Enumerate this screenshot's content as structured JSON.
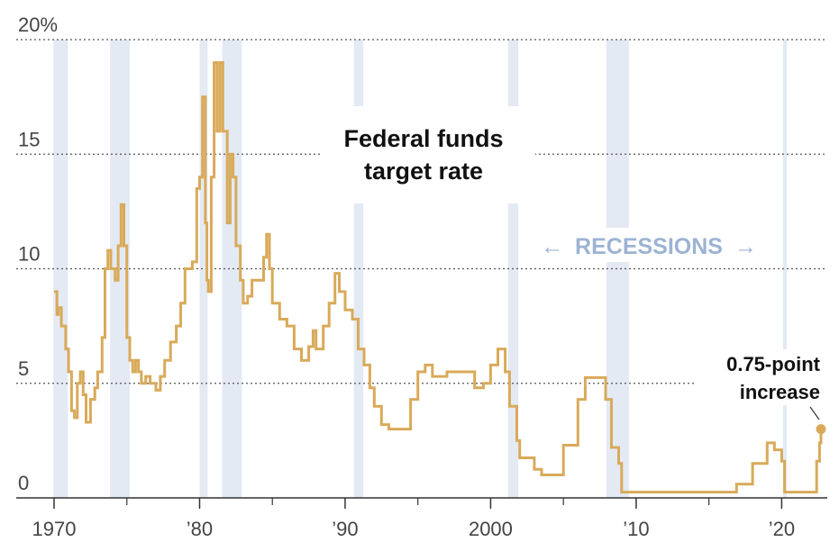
{
  "chart_data": {
    "type": "line",
    "title_lines": [
      "Federal funds",
      "target rate"
    ],
    "recessions_label": "RECESSIONS",
    "recessions_arrows": [
      "←",
      "→"
    ],
    "annotation_lines": [
      "0.75-point",
      "increase"
    ],
    "ylim": [
      0,
      20
    ],
    "xlim": [
      1970,
      2022.7
    ],
    "y_ticks": [
      {
        "value": 0,
        "label": "0"
      },
      {
        "value": 5,
        "label": "5"
      },
      {
        "value": 10,
        "label": "10"
      },
      {
        "value": 15,
        "label": "15"
      },
      {
        "value": 20,
        "label": "20%"
      }
    ],
    "x_ticks": [
      {
        "value": 1970,
        "label": "1970"
      },
      {
        "value": 1980,
        "label": "’80"
      },
      {
        "value": 1990,
        "label": "’90"
      },
      {
        "value": 2000,
        "label": "2000"
      },
      {
        "value": 2010,
        "label": "’10"
      },
      {
        "value": 2020,
        "label": "’20"
      }
    ],
    "x_minor_ticks": [
      1975,
      1985,
      1995,
      2005,
      2015
    ],
    "recessions": [
      [
        1969.95,
        1970.95
      ],
      [
        1973.85,
        1975.2
      ],
      [
        1980.0,
        1980.55
      ],
      [
        1981.55,
        1982.9
      ],
      [
        1990.6,
        1991.25
      ],
      [
        2001.2,
        2001.9
      ],
      [
        2007.95,
        2009.5
      ],
      [
        2020.1,
        2020.35
      ]
    ],
    "series": [
      {
        "color": "#d9aa5a",
        "points": [
          [
            1970.0,
            9.0
          ],
          [
            1970.2,
            8.0
          ],
          [
            1970.3,
            8.3
          ],
          [
            1970.5,
            7.5
          ],
          [
            1970.8,
            6.5
          ],
          [
            1971.0,
            5.5
          ],
          [
            1971.2,
            3.8
          ],
          [
            1971.4,
            3.5
          ],
          [
            1971.6,
            5.0
          ],
          [
            1971.8,
            5.5
          ],
          [
            1972.0,
            4.5
          ],
          [
            1972.2,
            3.3
          ],
          [
            1972.5,
            4.3
          ],
          [
            1972.8,
            4.8
          ],
          [
            1973.0,
            5.5
          ],
          [
            1973.3,
            7.0
          ],
          [
            1973.5,
            10.0
          ],
          [
            1973.7,
            10.8
          ],
          [
            1973.9,
            10.0
          ],
          [
            1974.2,
            9.5
          ],
          [
            1974.4,
            11.0
          ],
          [
            1974.6,
            12.8
          ],
          [
            1974.8,
            11.0
          ],
          [
            1975.0,
            7.0
          ],
          [
            1975.2,
            6.0
          ],
          [
            1975.4,
            5.5
          ],
          [
            1975.6,
            6.0
          ],
          [
            1975.8,
            5.5
          ],
          [
            1976.0,
            5.0
          ],
          [
            1976.3,
            5.3
          ],
          [
            1976.6,
            5.0
          ],
          [
            1977.0,
            4.7
          ],
          [
            1977.3,
            5.3
          ],
          [
            1977.6,
            6.0
          ],
          [
            1978.0,
            6.8
          ],
          [
            1978.4,
            7.5
          ],
          [
            1978.7,
            8.5
          ],
          [
            1979.0,
            10.0
          ],
          [
            1979.5,
            10.3
          ],
          [
            1979.8,
            13.5
          ],
          [
            1980.0,
            14.0
          ],
          [
            1980.2,
            17.5
          ],
          [
            1980.4,
            12.0
          ],
          [
            1980.5,
            9.5
          ],
          [
            1980.6,
            9.0
          ],
          [
            1980.8,
            14.0
          ],
          [
            1981.0,
            19.0
          ],
          [
            1981.2,
            16.0
          ],
          [
            1981.4,
            19.0
          ],
          [
            1981.6,
            16.0
          ],
          [
            1981.9,
            12.0
          ],
          [
            1982.1,
            15.0
          ],
          [
            1982.3,
            14.0
          ],
          [
            1982.5,
            11.0
          ],
          [
            1982.8,
            9.5
          ],
          [
            1983.0,
            8.5
          ],
          [
            1983.3,
            8.8
          ],
          [
            1983.6,
            9.5
          ],
          [
            1984.0,
            9.5
          ],
          [
            1984.4,
            10.5
          ],
          [
            1984.6,
            11.5
          ],
          [
            1984.8,
            10.0
          ],
          [
            1985.0,
            8.5
          ],
          [
            1985.5,
            7.8
          ],
          [
            1986.0,
            7.5
          ],
          [
            1986.5,
            6.5
          ],
          [
            1987.0,
            6.0
          ],
          [
            1987.5,
            6.6
          ],
          [
            1987.8,
            7.3
          ],
          [
            1988.0,
            6.5
          ],
          [
            1988.5,
            7.5
          ],
          [
            1988.9,
            8.5
          ],
          [
            1989.3,
            9.8
          ],
          [
            1989.6,
            9.0
          ],
          [
            1990.0,
            8.2
          ],
          [
            1990.5,
            7.8
          ],
          [
            1990.9,
            6.5
          ],
          [
            1991.3,
            5.8
          ],
          [
            1991.7,
            4.8
          ],
          [
            1992.0,
            4.0
          ],
          [
            1992.5,
            3.2
          ],
          [
            1993.0,
            3.0
          ],
          [
            1994.0,
            3.0
          ],
          [
            1994.5,
            4.3
          ],
          [
            1995.0,
            5.5
          ],
          [
            1995.5,
            5.8
          ],
          [
            1996.0,
            5.3
          ],
          [
            1997.0,
            5.5
          ],
          [
            1998.0,
            5.5
          ],
          [
            1998.5,
            5.5
          ],
          [
            1998.9,
            4.8
          ],
          [
            1999.5,
            5.0
          ],
          [
            2000.0,
            5.8
          ],
          [
            2000.5,
            6.5
          ],
          [
            2001.0,
            5.5
          ],
          [
            2001.3,
            4.0
          ],
          [
            2001.8,
            2.5
          ],
          [
            2002.0,
            1.75
          ],
          [
            2003.0,
            1.25
          ],
          [
            2003.5,
            1.0
          ],
          [
            2004.4,
            1.0
          ],
          [
            2005.0,
            2.3
          ],
          [
            2006.0,
            4.3
          ],
          [
            2006.5,
            5.25
          ],
          [
            2007.6,
            5.25
          ],
          [
            2007.9,
            4.3
          ],
          [
            2008.3,
            2.2
          ],
          [
            2008.8,
            1.5
          ],
          [
            2009.0,
            0.25
          ],
          [
            2015.9,
            0.25
          ],
          [
            2016.9,
            0.6
          ],
          [
            2018.0,
            1.5
          ],
          [
            2019.0,
            2.4
          ],
          [
            2019.5,
            2.1
          ],
          [
            2020.0,
            1.6
          ],
          [
            2020.2,
            0.25
          ],
          [
            2022.1,
            0.25
          ],
          [
            2022.4,
            1.6
          ],
          [
            2022.6,
            2.4
          ],
          [
            2022.7,
            3.0
          ]
        ]
      }
    ]
  }
}
